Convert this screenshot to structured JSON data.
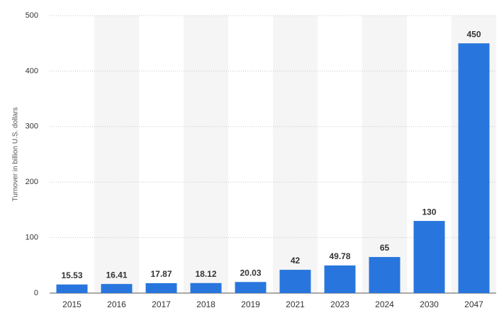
{
  "chart_data": {
    "type": "bar",
    "y_label": "Turnover in billion U.S. dollars",
    "categories": [
      "2015",
      "2016",
      "2017",
      "2018",
      "2019",
      "2021",
      "2023",
      "2024",
      "2030",
      "2047"
    ],
    "values": [
      15.53,
      16.41,
      17.87,
      18.12,
      20.03,
      42,
      49.78,
      65,
      130,
      450
    ],
    "color": "#2876dd",
    "ylim": [
      0,
      500
    ],
    "yticks": [
      0,
      100,
      200,
      300,
      400,
      500
    ],
    "grid": true
  }
}
